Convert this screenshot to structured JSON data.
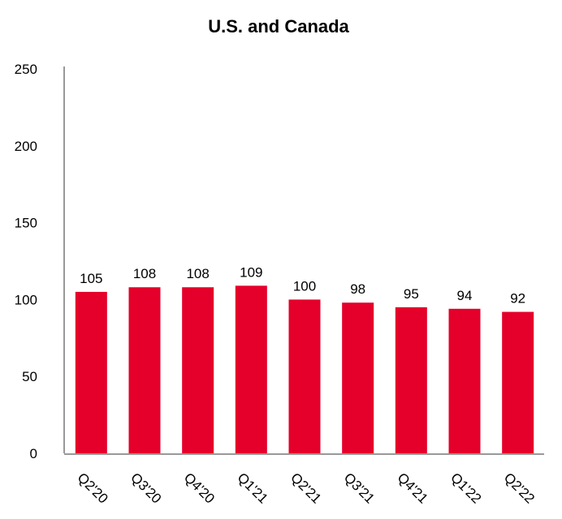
{
  "chart_data": {
    "type": "bar",
    "title": "U.S. and Canada",
    "categories": [
      "Q2'20",
      "Q3'20",
      "Q4'20",
      "Q1'21",
      "Q2'21",
      "Q3'21",
      "Q4'21",
      "Q1'22",
      "Q2'22"
    ],
    "values": [
      105,
      108,
      108,
      109,
      100,
      98,
      95,
      94,
      92
    ],
    "ylim": [
      0,
      250
    ],
    "yticks": [
      0,
      50,
      100,
      150,
      200,
      250
    ],
    "grid": false,
    "bar_color": "#e4002b",
    "data_labels": true
  }
}
